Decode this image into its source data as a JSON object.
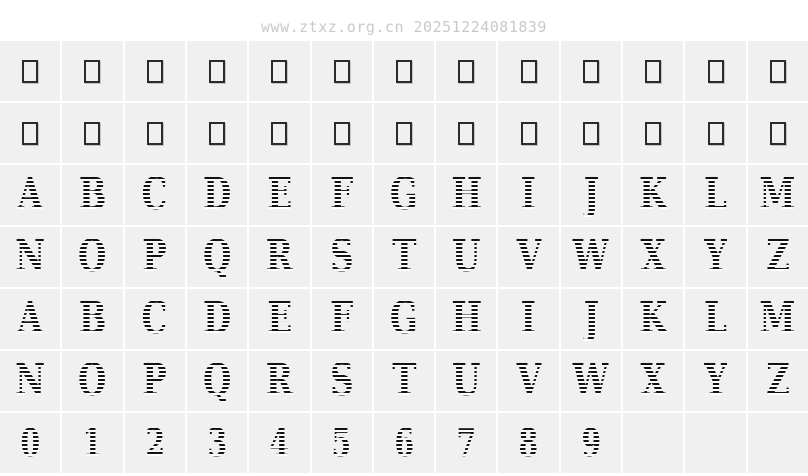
{
  "watermark": {
    "text": "www.ztxz.org.cn 20251224081839"
  },
  "colors": {
    "page_bg": "#ffffff",
    "cell_bg": "#f0f0f0",
    "grid_line": "#ffffff",
    "glyph_dark": "#121212",
    "stripe_light": "#ffffff",
    "watermark_gray": "#c9c9c9",
    "notdef_border": "#2b2b2b"
  },
  "glyph_grid": {
    "columns": 13,
    "row_count": 7,
    "rows": [
      {
        "kind": "notdef",
        "count": 13
      },
      {
        "kind": "notdef",
        "count": 13
      },
      {
        "kind": "glyph",
        "cells": [
          "A",
          "B",
          "C",
          "D",
          "E",
          "F",
          "G",
          "H",
          "I",
          "J",
          "K",
          "L",
          "M"
        ]
      },
      {
        "kind": "glyph",
        "cells": [
          "N",
          "O",
          "P",
          "Q",
          "R",
          "S",
          "T",
          "U",
          "V",
          "W",
          "X",
          "Y",
          "Z"
        ]
      },
      {
        "kind": "glyph",
        "cells": [
          "A",
          "B",
          "C",
          "D",
          "E",
          "F",
          "G",
          "H",
          "I",
          "J",
          "K",
          "L",
          "M"
        ]
      },
      {
        "kind": "glyph",
        "cells": [
          "N",
          "O",
          "P",
          "Q",
          "R",
          "S",
          "T",
          "U",
          "V",
          "W",
          "X",
          "Y",
          "Z"
        ]
      },
      {
        "kind": "digits",
        "cells": [
          "0",
          "1",
          "2",
          "3",
          "4",
          "5",
          "6",
          "7",
          "8",
          "9",
          "",
          "",
          ""
        ]
      }
    ]
  }
}
